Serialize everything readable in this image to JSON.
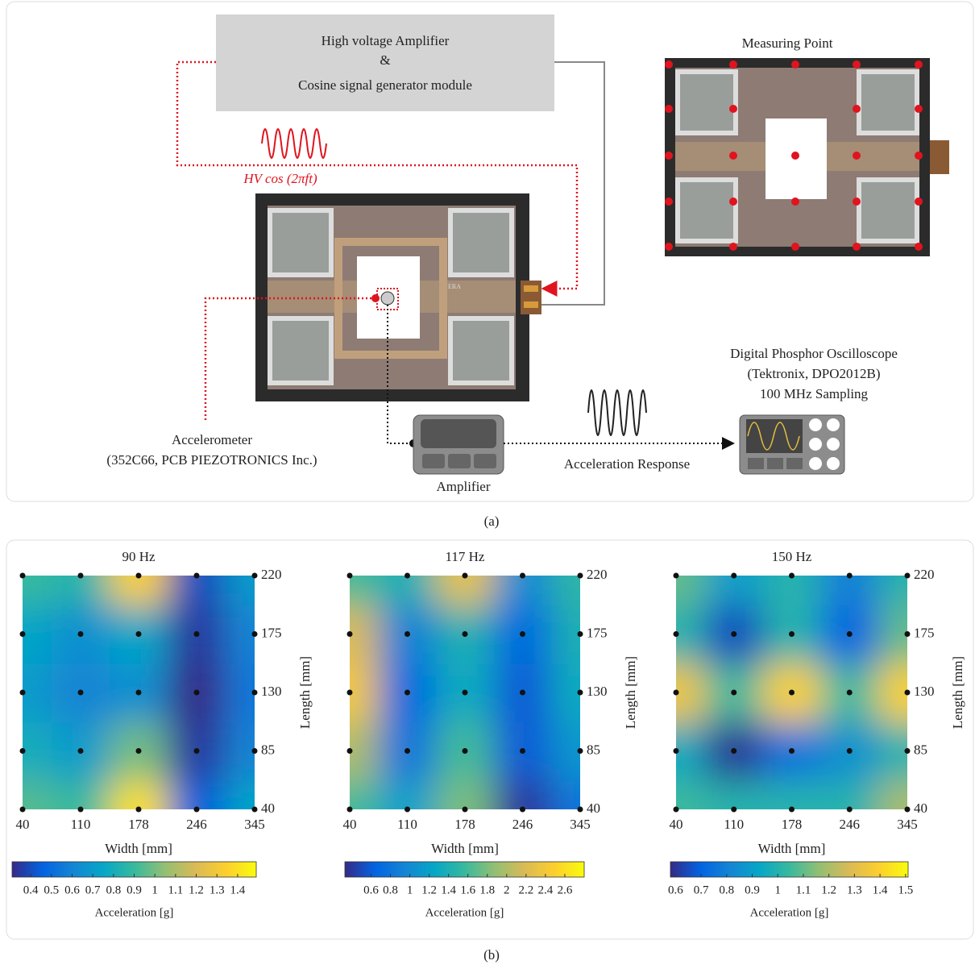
{
  "panel_a": {
    "amplifier_box": [
      "High voltage Amplifier",
      "&",
      "Cosine signal generator module"
    ],
    "signal_label": "HV cos (2πft)",
    "measuring_point": "Measuring Point",
    "device_label": "ERA",
    "accelerometer": [
      "Accelerometer",
      "(352C66, PCB PIEZOTRONICS Inc.)"
    ],
    "amplifier": "Amplifier",
    "response": "Acceleration Response",
    "oscilloscope": [
      "Digital Phosphor Oscilloscope",
      "(Tektronix, DPO2012B)",
      "100 MHz Sampling"
    ],
    "caption": "(a)"
  },
  "chart_data": [
    {
      "type": "heatmap",
      "title": "90 Hz",
      "x_label": "Width [mm]",
      "y_label": "Length [mm]",
      "x_categories": [
        "40",
        "110",
        "178",
        "246",
        "345"
      ],
      "y_categories": [
        "40",
        "85",
        "130",
        "175",
        "220"
      ],
      "z": [
        [
          0.95,
          0.9,
          1.4,
          0.45,
          0.75
        ],
        [
          0.8,
          0.7,
          1.0,
          0.35,
          0.6
        ],
        [
          0.7,
          0.6,
          0.65,
          0.3,
          0.55
        ],
        [
          0.75,
          0.65,
          0.75,
          0.35,
          0.6
        ],
        [
          0.9,
          0.85,
          1.35,
          0.4,
          0.7
        ]
      ],
      "colorbar_label": "Acceleration [g]",
      "clim": [
        0.31,
        1.49
      ],
      "cticks": [
        0.4,
        0.5,
        0.6,
        0.7,
        0.8,
        0.9,
        1,
        1.1,
        1.2,
        1.3,
        1.4
      ]
    },
    {
      "type": "heatmap",
      "title": "117 Hz",
      "x_label": "Width [mm]",
      "y_label": "Length [mm]",
      "x_categories": [
        "40",
        "110",
        "178",
        "246",
        "345"
      ],
      "y_categories": [
        "40",
        "85",
        "130",
        "175",
        "220"
      ],
      "z": [
        [
          1.6,
          1.2,
          1.8,
          0.4,
          0.8
        ],
        [
          2.0,
          0.8,
          1.6,
          0.6,
          1.1
        ],
        [
          2.4,
          0.7,
          1.3,
          0.6,
          1.3
        ],
        [
          2.2,
          0.9,
          1.4,
          0.7,
          1.4
        ],
        [
          1.6,
          1.4,
          2.3,
          1.0,
          1.5
        ]
      ],
      "colorbar_label": "Acceleration [g]",
      "clim": [
        0.33,
        2.8
      ],
      "cticks": [
        0.6,
        0.8,
        1,
        1.2,
        1.4,
        1.6,
        1.8,
        2,
        2.2,
        2.4,
        2.6
      ]
    },
    {
      "type": "heatmap",
      "title": "150 Hz",
      "x_label": "Width [mm]",
      "y_label": "Length [mm]",
      "x_categories": [
        "40",
        "110",
        "178",
        "246",
        "345"
      ],
      "y_categories": [
        "40",
        "85",
        "130",
        "175",
        "220"
      ],
      "z": [
        [
          1.05,
          1.0,
          1.0,
          1.0,
          1.2
        ],
        [
          0.95,
          0.6,
          0.75,
          0.85,
          1.0
        ],
        [
          1.35,
          1.05,
          1.4,
          1.05,
          1.4
        ],
        [
          1.0,
          0.65,
          1.0,
          0.7,
          1.1
        ],
        [
          1.1,
          0.9,
          1.0,
          0.8,
          1.0
        ]
      ],
      "colorbar_label": "Acceleration [g]",
      "clim": [
        0.58,
        1.51
      ],
      "cticks": [
        0.6,
        0.7,
        0.8,
        0.9,
        1,
        1.1,
        1.2,
        1.3,
        1.4,
        1.5
      ]
    }
  ],
  "caption_b": "(b)"
}
